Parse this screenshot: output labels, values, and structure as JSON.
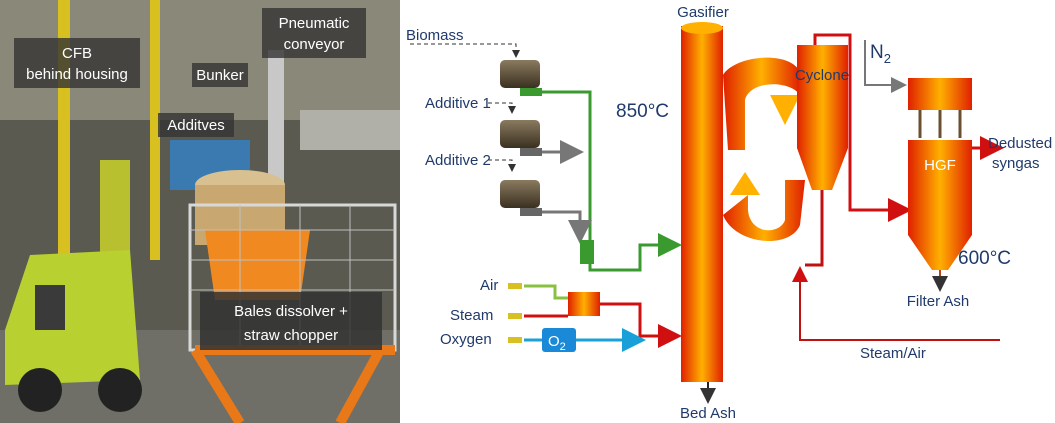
{
  "photo": {
    "labels": [
      {
        "lines": [
          "Pneumatic",
          "conveyor"
        ]
      },
      {
        "lines": [
          "CFB",
          "behind housing"
        ]
      },
      {
        "lines": [
          "Bunker"
        ]
      },
      {
        "lines": [
          "Additves"
        ]
      },
      {
        "lines": [
          "Bales dissolver +",
          "straw chopper"
        ]
      }
    ]
  },
  "diagram": {
    "feed": {
      "biomass": "Biomass",
      "additive_1": "Additive 1",
      "additive_2": "Additive 2"
    },
    "units": {
      "gasifier": "Gasifier",
      "cyclone": "Cyclone",
      "hgf": "HGF"
    },
    "temperatures": {
      "gasifier": "850°C",
      "filter": "600°C"
    },
    "gases": {
      "air": "Air",
      "steam": "Steam",
      "oxygen": "Oxygen",
      "o2": {
        "text": "O",
        "subscript": "2"
      },
      "n2": {
        "text": "N",
        "subscript": "2"
      },
      "steam_air": "Steam/Air"
    },
    "outputs": {
      "syngas": [
        "Dedusted",
        "syngas"
      ],
      "filter_ash": "Filter Ash",
      "bed_ash": "Bed Ash"
    }
  }
}
